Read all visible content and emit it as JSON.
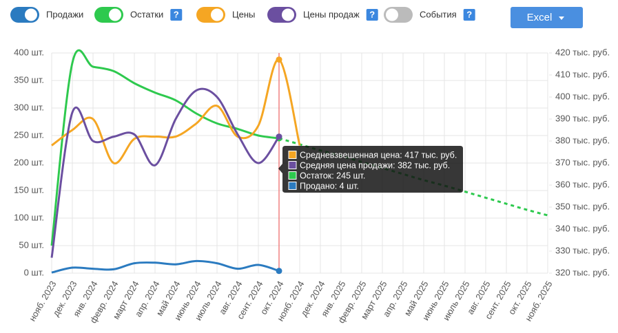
{
  "chart_data": {
    "type": "line",
    "categories": [
      "нояб. 2023",
      "дек. 2023",
      "янв. 2024",
      "февр. 2024",
      "март 2024",
      "апр. 2024",
      "май 2024",
      "июнь 2024",
      "июль 2024",
      "авг. 2024",
      "сент. 2024",
      "окт. 2024",
      "нояб. 2024",
      "дек. 2024",
      "янв. 2025",
      "февр. 2025",
      "март 2025",
      "апр. 2025",
      "май 2025",
      "июнь 2025",
      "июль 2025",
      "авг. 2025",
      "сент. 2025",
      "окт. 2025",
      "нояб. 2025"
    ],
    "ylim": [
      0,
      400
    ],
    "yticks": [
      {
        "value": 0,
        "label": "0 шт."
      },
      {
        "value": 50,
        "label": "50 шт."
      },
      {
        "value": 100,
        "label": "100 шт."
      },
      {
        "value": 150,
        "label": "150 шт."
      },
      {
        "value": 200,
        "label": "200 шт."
      },
      {
        "value": 250,
        "label": "250 шт."
      },
      {
        "value": 300,
        "label": "300 шт."
      },
      {
        "value": 350,
        "label": "350 шт."
      },
      {
        "value": 400,
        "label": "400 шт."
      }
    ],
    "y2lim": [
      320,
      420
    ],
    "y2ticks": [
      {
        "value": 320,
        "label": "320 тыс. руб."
      },
      {
        "value": 330,
        "label": "330 тыс. руб."
      },
      {
        "value": 340,
        "label": "340 тыс. руб."
      },
      {
        "value": 350,
        "label": "350 тыс. руб."
      },
      {
        "value": 360,
        "label": "360 тыс. руб."
      },
      {
        "value": 370,
        "label": "370 тыс. руб."
      },
      {
        "value": 380,
        "label": "380 тыс. руб."
      },
      {
        "value": 390,
        "label": "390 тыс. руб."
      },
      {
        "value": 400,
        "label": "400 тыс. руб."
      },
      {
        "value": 410,
        "label": "410 тыс. руб."
      },
      {
        "value": 420,
        "label": "420 тыс. руб."
      }
    ],
    "grid": true,
    "hover_index": 11,
    "series": [
      {
        "name": "Продажи",
        "color": "#2b7bc0",
        "axis": "y",
        "values": [
          1,
          10,
          8,
          7,
          18,
          19,
          16,
          22,
          18,
          8,
          15,
          4,
          null,
          null,
          null,
          null,
          null,
          null,
          null,
          null,
          null,
          null,
          null,
          null,
          null
        ]
      },
      {
        "name": "Остатки",
        "color": "#2ec94e",
        "axis": "y",
        "help": "?",
        "dashed_from": 11,
        "values": [
          50,
          382,
          375,
          367,
          345,
          328,
          314,
          290,
          272,
          262,
          250,
          245,
          234,
          223,
          213,
          202,
          191,
          180,
          169,
          159,
          148,
          137,
          126,
          115,
          105
        ]
      },
      {
        "name": "Цены",
        "color": "#f5a623",
        "axis": "y2",
        "values": [
          378,
          385,
          390,
          370,
          381,
          382,
          382,
          388,
          396,
          382,
          387,
          417,
          378,
          null,
          null,
          null,
          null,
          null,
          null,
          null,
          null,
          null,
          null,
          null,
          null
        ]
      },
      {
        "name": "Цены продаж",
        "color": "#6b4fa0",
        "axis": "y2",
        "help": "?",
        "values": [
          327,
          393,
          380,
          382,
          383,
          369,
          390,
          403,
          400,
          383,
          370,
          382,
          null,
          null,
          null,
          null,
          null,
          null,
          null,
          null,
          null,
          null,
          null,
          null,
          null
        ]
      }
    ],
    "extra_toggle": {
      "name": "События",
      "color": "#bbbbbb",
      "help": "?"
    },
    "button": "Excel",
    "tooltip": [
      {
        "text": "Средневзвешенная цена: 417 тыс. руб.",
        "color": "#f5a623"
      },
      {
        "text": "Средняя цена продажи: 382 тыс. руб.",
        "color": "#6b4fa0"
      },
      {
        "text": "Остаток: 245 шт.",
        "color": "#2ec94e"
      },
      {
        "text": "Продано: 4 шт.",
        "color": "#2b7bc0"
      }
    ]
  }
}
